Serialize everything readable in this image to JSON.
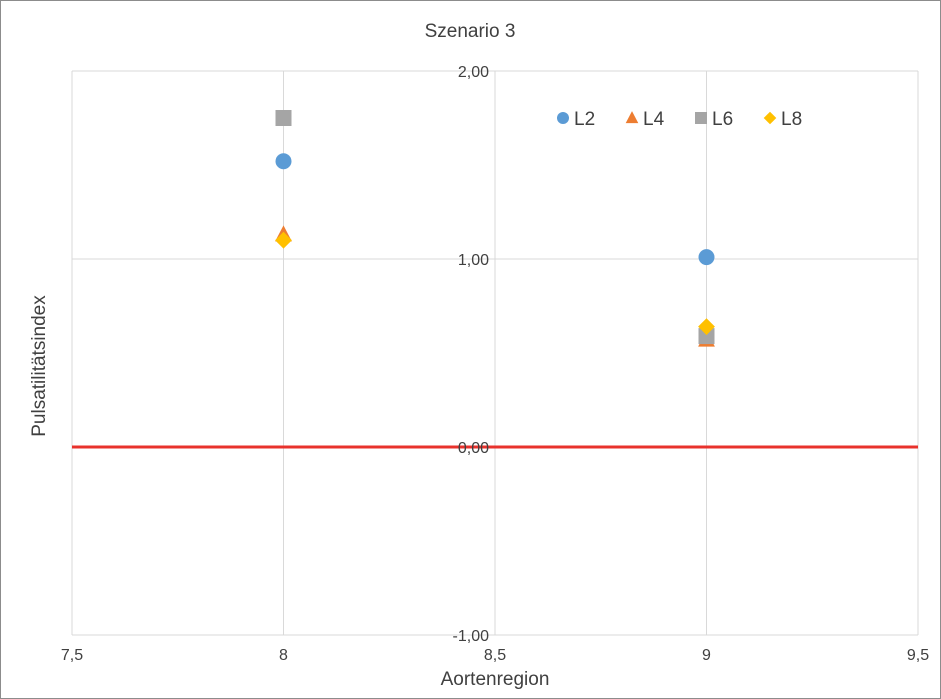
{
  "chart_data": {
    "type": "scatter",
    "title": "Szenario 3",
    "xlabel": "Aortenregion",
    "ylabel": "Pulsatilitätsindex",
    "xlim": [
      7.5,
      9.5
    ],
    "ylim": [
      -1.0,
      2.0
    ],
    "x_ticks": [
      7.5,
      8,
      8.5,
      9,
      9.5
    ],
    "x_tick_labels": [
      "7,5",
      "8",
      "8,5",
      "9",
      "9,5"
    ],
    "y_ticks": [
      -1.0,
      0.0,
      1.0,
      2.0
    ],
    "y_tick_labels": [
      "-1,00",
      "0,00",
      "1,00",
      "2,00"
    ],
    "grid": true,
    "legend_position": "top-right",
    "reference_line": {
      "y": 0.0,
      "color": "#e8322c"
    },
    "series": [
      {
        "name": "L2",
        "marker": "circle",
        "color": "#5b9bd5",
        "points": [
          [
            8,
            1.52
          ],
          [
            9,
            1.01
          ]
        ]
      },
      {
        "name": "L4",
        "marker": "triangle",
        "color": "#ed7d31",
        "points": [
          [
            8,
            1.13
          ],
          [
            9,
            0.57
          ]
        ]
      },
      {
        "name": "L6",
        "marker": "square",
        "color": "#a5a5a5",
        "points": [
          [
            8,
            1.75
          ],
          [
            9,
            0.59
          ]
        ]
      },
      {
        "name": "L8",
        "marker": "diamond",
        "color": "#ffc000",
        "points": [
          [
            8,
            1.1
          ],
          [
            9,
            0.64
          ]
        ]
      }
    ]
  }
}
